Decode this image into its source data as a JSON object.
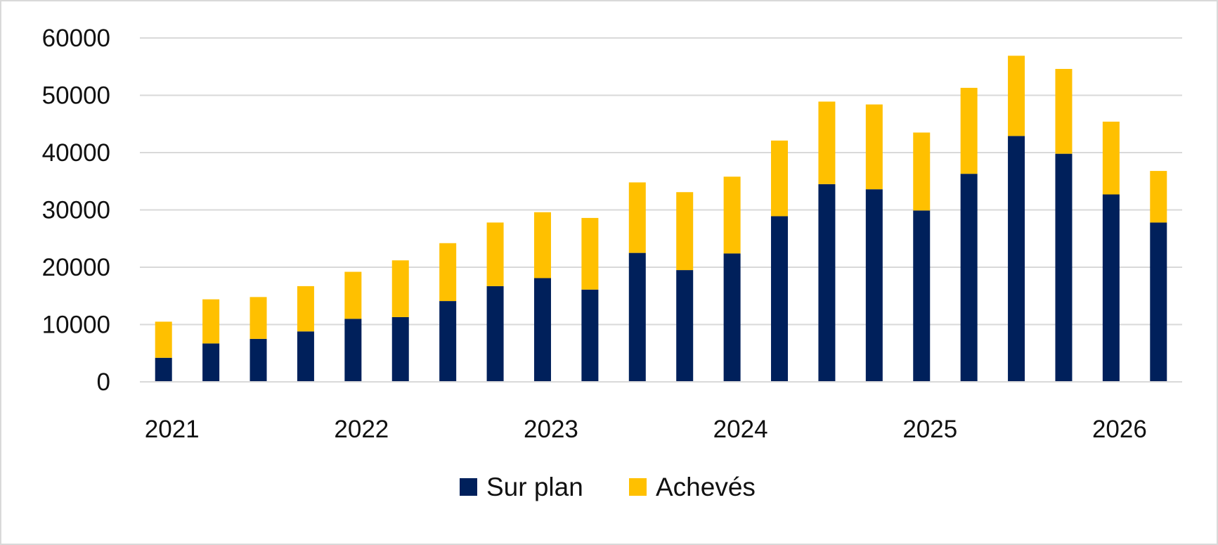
{
  "chart_data": {
    "type": "bar",
    "stacked": true,
    "categories": [
      "2021-Q1",
      "2021-Q2",
      "2021-Q3",
      "2021-Q4",
      "2022-Q1",
      "2022-Q2",
      "2022-Q3",
      "2022-Q4",
      "2023-Q1",
      "2023-Q2",
      "2023-Q3",
      "2023-Q4",
      "2024-Q1",
      "2024-Q2",
      "2024-Q3",
      "2024-Q4",
      "2025-Q1",
      "2025-Q2",
      "2025-Q3",
      "2025-Q4",
      "2026-Q1",
      "2026-Q2"
    ],
    "x_tick_labels": [
      "2021",
      "2022",
      "2023",
      "2024",
      "2025",
      "2026"
    ],
    "series": [
      {
        "name": "Sur plan",
        "color": "#00205b",
        "values": [
          4200,
          6700,
          7500,
          8800,
          11000,
          11300,
          14100,
          16700,
          18100,
          16100,
          22500,
          19500,
          22400,
          28900,
          34500,
          33600,
          29900,
          36300,
          42900,
          39800,
          32700,
          27800
        ]
      },
      {
        "name": "Achevés",
        "color": "#ffc000",
        "values": [
          6300,
          7700,
          7300,
          7900,
          8200,
          9900,
          10100,
          11100,
          11500,
          12500,
          12300,
          13600,
          13400,
          13200,
          14400,
          14800,
          13600,
          15000,
          14000,
          14800,
          12700,
          9000
        ]
      }
    ],
    "ylim": [
      0,
      60000
    ],
    "y_ticks": [
      0,
      10000,
      20000,
      30000,
      40000,
      50000,
      60000
    ],
    "grid": true,
    "legend_position": "bottom",
    "title": "",
    "xlabel": "",
    "ylabel": ""
  }
}
